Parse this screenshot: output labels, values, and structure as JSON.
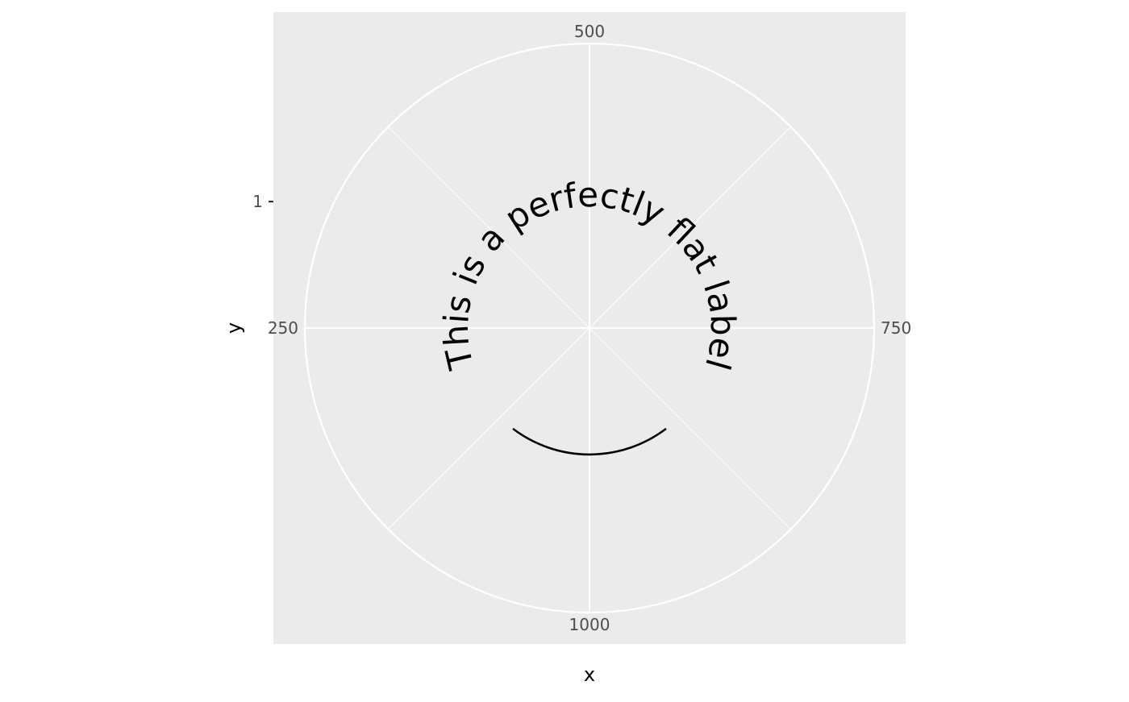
{
  "chart_data": {
    "type": "polar-line",
    "coord": "polar",
    "title": "",
    "xlabel": "x",
    "ylabel": "y",
    "theta_axis": {
      "limits": [
        0,
        1000
      ],
      "start_value_at_top": 500,
      "tick_labels": [
        {
          "value": 250,
          "label": "250"
        },
        {
          "value": 500,
          "label": "500"
        },
        {
          "value": 750,
          "label": "750"
        },
        {
          "value": 1000,
          "label": "1000"
        }
      ],
      "minor_breaks": [
        125,
        375,
        625,
        875
      ]
    },
    "radial_axis": {
      "ticks": [
        {
          "value": 1,
          "label": "1"
        }
      ],
      "grid_value": 1,
      "limits": [
        0,
        2.25
      ]
    },
    "series": [
      {
        "x": [
          0,
          250,
          500,
          750,
          1000
        ],
        "y": [
          1,
          1,
          1,
          1,
          1
        ],
        "label": "This is a perfectly flat label"
      }
    ],
    "grid": true,
    "legend": "none",
    "colors": {
      "panel_background": "#ebebeb",
      "grid": "#ffffff",
      "line": "#000000",
      "text": "#000000",
      "tick_text": "#4d4d4d"
    }
  }
}
